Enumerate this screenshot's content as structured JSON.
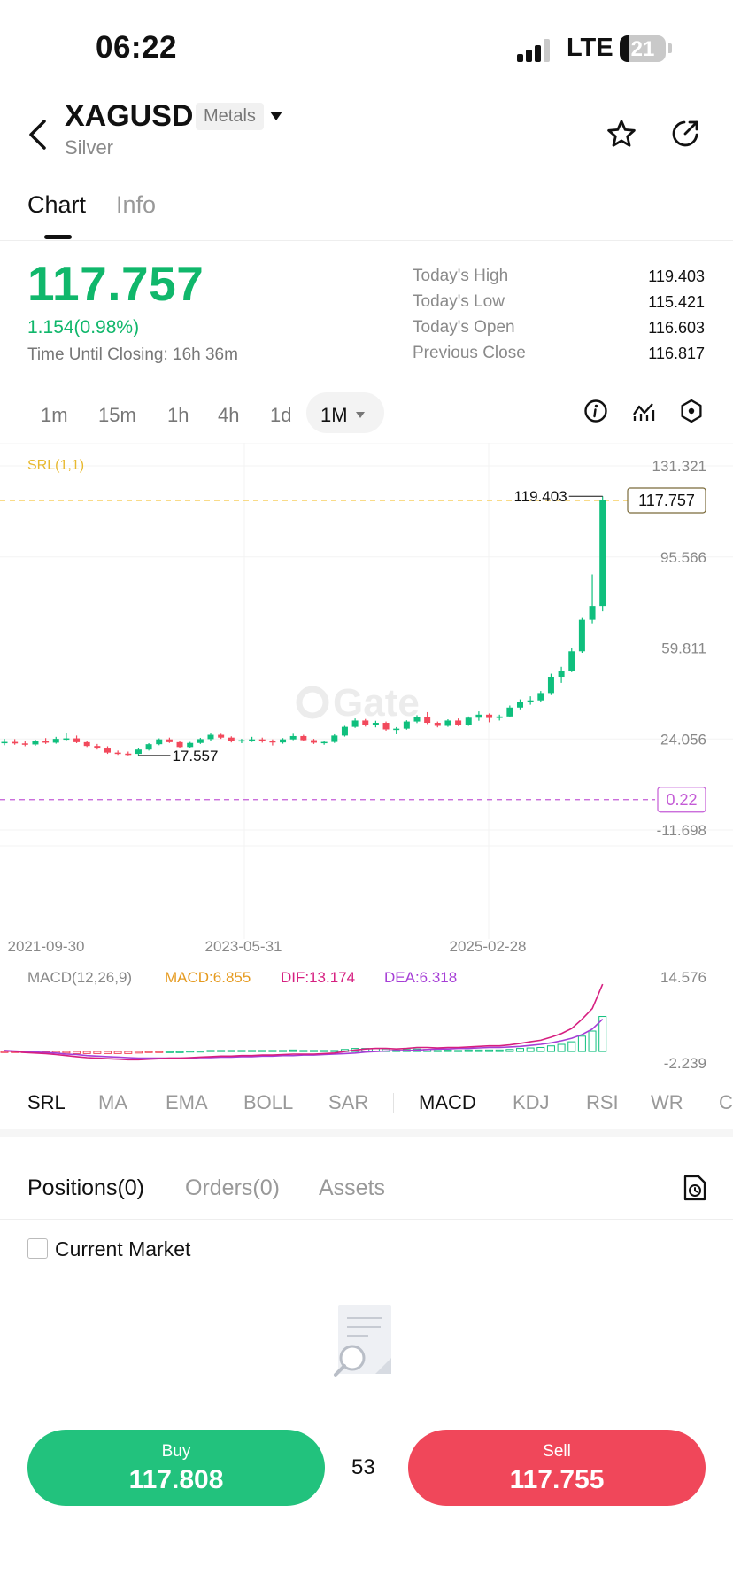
{
  "status_bar": {
    "time": "06:22",
    "network": "LTE",
    "battery": "21",
    "battery_fraction": 0.21
  },
  "header": {
    "symbol": "XAGUSD",
    "category_badge": "Metals",
    "name": "Silver"
  },
  "tabs": [
    {
      "label": "Chart",
      "active": true
    },
    {
      "label": "Info",
      "active": false
    }
  ],
  "quote": {
    "last_price": "117.757",
    "change": "1.154(0.98%)",
    "time_until_closing": "Time Until Closing: 16h 36m",
    "stats": [
      {
        "label": "Today's High",
        "value": "119.403"
      },
      {
        "label": "Today's Low",
        "value": "115.421"
      },
      {
        "label": "Today's Open",
        "value": "116.603"
      },
      {
        "label": "Previous Close",
        "value": "116.817"
      }
    ]
  },
  "timeframes": [
    "1m",
    "15m",
    "1h",
    "4h",
    "1d"
  ],
  "active_timeframe": "1M",
  "chart_data": {
    "type": "candlestick",
    "interval": "1M",
    "indicator_label": "SRL(1,1)",
    "watermark": "Gate",
    "y_ticks": [
      "131.321",
      "95.566",
      "59.811",
      "24.056",
      "-11.698"
    ],
    "ylim": [
      -11.698,
      131.321
    ],
    "x_ticks": [
      "2021-09-30",
      "2023-05-31",
      "2025-02-28"
    ],
    "current_price_label": "117.757",
    "high_marker": "119.403",
    "low_marker": "17.557",
    "indicator_line_label": "0.22",
    "up_color": "#0fbf7d",
    "down_color": "#f2495c",
    "candles": [
      {
        "o": 22.5,
        "h": 24.1,
        "l": 21.6,
        "c": 22.9
      },
      {
        "o": 22.9,
        "h": 24.0,
        "l": 21.8,
        "c": 22.3
      },
      {
        "o": 22.3,
        "h": 23.4,
        "l": 21.2,
        "c": 21.9
      },
      {
        "o": 21.9,
        "h": 23.8,
        "l": 21.4,
        "c": 23.2
      },
      {
        "o": 23.2,
        "h": 24.4,
        "l": 22.1,
        "c": 22.6
      },
      {
        "o": 22.6,
        "h": 24.9,
        "l": 22.2,
        "c": 24.1
      },
      {
        "o": 24.1,
        "h": 26.5,
        "l": 23.5,
        "c": 24.3
      },
      {
        "o": 24.3,
        "h": 25.4,
        "l": 22.4,
        "c": 22.8
      },
      {
        "o": 22.8,
        "h": 23.4,
        "l": 20.9,
        "c": 21.3
      },
      {
        "o": 21.3,
        "h": 22.1,
        "l": 19.9,
        "c": 20.3
      },
      {
        "o": 20.3,
        "h": 21.2,
        "l": 18.2,
        "c": 18.7
      },
      {
        "o": 18.7,
        "h": 19.5,
        "l": 17.8,
        "c": 18.3
      },
      {
        "o": 18.3,
        "h": 19.1,
        "l": 17.6,
        "c": 18.2
      },
      {
        "o": 18.2,
        "h": 20.4,
        "l": 17.557,
        "c": 19.9
      },
      {
        "o": 19.9,
        "h": 22.4,
        "l": 19.5,
        "c": 22.0
      },
      {
        "o": 22.0,
        "h": 24.3,
        "l": 21.6,
        "c": 23.9
      },
      {
        "o": 23.9,
        "h": 24.6,
        "l": 22.5,
        "c": 22.8
      },
      {
        "o": 22.8,
        "h": 23.4,
        "l": 20.3,
        "c": 20.9
      },
      {
        "o": 20.9,
        "h": 22.9,
        "l": 20.5,
        "c": 22.5
      },
      {
        "o": 22.5,
        "h": 24.5,
        "l": 22.1,
        "c": 24.0
      },
      {
        "o": 24.0,
        "h": 26.2,
        "l": 23.4,
        "c": 25.7
      },
      {
        "o": 25.7,
        "h": 26.1,
        "l": 24.1,
        "c": 24.6
      },
      {
        "o": 24.6,
        "h": 25.1,
        "l": 22.7,
        "c": 23.1
      },
      {
        "o": 23.1,
        "h": 24.1,
        "l": 22.4,
        "c": 23.6
      },
      {
        "o": 23.6,
        "h": 24.9,
        "l": 22.9,
        "c": 23.9
      },
      {
        "o": 23.9,
        "h": 24.6,
        "l": 22.6,
        "c": 23.2
      },
      {
        "o": 23.2,
        "h": 23.9,
        "l": 21.5,
        "c": 22.7
      },
      {
        "o": 22.7,
        "h": 24.4,
        "l": 22.2,
        "c": 23.9
      },
      {
        "o": 23.9,
        "h": 26.1,
        "l": 23.6,
        "c": 25.2
      },
      {
        "o": 25.2,
        "h": 25.7,
        "l": 23.2,
        "c": 23.6
      },
      {
        "o": 23.6,
        "h": 24.1,
        "l": 22.1,
        "c": 22.6
      },
      {
        "o": 22.6,
        "h": 23.2,
        "l": 21.8,
        "c": 22.9
      },
      {
        "o": 22.9,
        "h": 25.9,
        "l": 22.5,
        "c": 25.4
      },
      {
        "o": 25.4,
        "h": 29.2,
        "l": 25.0,
        "c": 28.8
      },
      {
        "o": 28.8,
        "h": 32.1,
        "l": 28.4,
        "c": 31.3
      },
      {
        "o": 31.3,
        "h": 31.9,
        "l": 28.9,
        "c": 29.5
      },
      {
        "o": 29.5,
        "h": 31.2,
        "l": 28.6,
        "c": 30.4
      },
      {
        "o": 30.4,
        "h": 30.9,
        "l": 27.3,
        "c": 27.8
      },
      {
        "o": 27.8,
        "h": 28.7,
        "l": 25.9,
        "c": 28.1
      },
      {
        "o": 28.1,
        "h": 31.4,
        "l": 27.7,
        "c": 30.9
      },
      {
        "o": 30.9,
        "h": 33.4,
        "l": 30.3,
        "c": 32.5
      },
      {
        "o": 32.5,
        "h": 34.6,
        "l": 29.9,
        "c": 30.4
      },
      {
        "o": 30.4,
        "h": 30.9,
        "l": 28.6,
        "c": 29.2
      },
      {
        "o": 29.2,
        "h": 31.8,
        "l": 28.8,
        "c": 31.3
      },
      {
        "o": 31.3,
        "h": 32.1,
        "l": 29.1,
        "c": 29.6
      },
      {
        "o": 29.6,
        "h": 32.9,
        "l": 29.2,
        "c": 32.4
      },
      {
        "o": 32.4,
        "h": 34.9,
        "l": 31.2,
        "c": 33.6
      },
      {
        "o": 33.6,
        "h": 34.1,
        "l": 30.6,
        "c": 32.3
      },
      {
        "o": 32.3,
        "h": 33.6,
        "l": 31.3,
        "c": 32.9
      },
      {
        "o": 32.9,
        "h": 37.2,
        "l": 32.5,
        "c": 36.4
      },
      {
        "o": 36.4,
        "h": 39.6,
        "l": 35.7,
        "c": 38.6
      },
      {
        "o": 38.6,
        "h": 40.8,
        "l": 37.5,
        "c": 39.2
      },
      {
        "o": 39.2,
        "h": 42.9,
        "l": 38.4,
        "c": 42.1
      },
      {
        "o": 42.1,
        "h": 49.7,
        "l": 41.3,
        "c": 48.5
      },
      {
        "o": 48.5,
        "h": 52.4,
        "l": 46.1,
        "c": 50.8
      },
      {
        "o": 50.8,
        "h": 59.9,
        "l": 50.3,
        "c": 58.5
      },
      {
        "o": 58.5,
        "h": 71.6,
        "l": 57.9,
        "c": 70.9
      },
      {
        "o": 70.9,
        "h": 88.7,
        "l": 69.5,
        "c": 76.3
      },
      {
        "o": 76.3,
        "h": 119.403,
        "l": 74.2,
        "c": 117.757
      }
    ],
    "macd": {
      "label": "MACD(12,26,9)",
      "macd_value": "MACD:6.855",
      "dif_value": "DIF:13.174",
      "dea_value": "DEA:6.318",
      "y_ticks": [
        "14.576",
        "-2.239"
      ],
      "ylim": [
        -2.239,
        14.576
      ],
      "dif_color": "#d61f80",
      "dea_color": "#a63ed6",
      "dif": [
        0.1,
        0.0,
        -0.2,
        -0.3,
        -0.4,
        -0.6,
        -0.8,
        -1.0,
        -1.2,
        -1.3,
        -1.4,
        -1.5,
        -1.6,
        -1.6,
        -1.5,
        -1.4,
        -1.3,
        -1.3,
        -1.2,
        -1.1,
        -1.0,
        -0.9,
        -0.9,
        -0.8,
        -0.8,
        -0.7,
        -0.7,
        -0.6,
        -0.5,
        -0.5,
        -0.5,
        -0.4,
        -0.3,
        0.0,
        0.3,
        0.5,
        0.6,
        0.6,
        0.5,
        0.6,
        0.8,
        0.8,
        0.7,
        0.8,
        0.8,
        0.9,
        1.0,
        1.1,
        1.1,
        1.3,
        1.6,
        1.9,
        2.2,
        2.8,
        3.5,
        4.5,
        6.3,
        8.4,
        13.174
      ],
      "dea": [
        0.2,
        0.1,
        0.0,
        -0.1,
        -0.2,
        -0.3,
        -0.5,
        -0.6,
        -0.8,
        -0.9,
        -1.0,
        -1.1,
        -1.2,
        -1.3,
        -1.3,
        -1.3,
        -1.3,
        -1.3,
        -1.3,
        -1.2,
        -1.2,
        -1.1,
        -1.1,
        -1.0,
        -1.0,
        -0.9,
        -0.9,
        -0.8,
        -0.8,
        -0.7,
        -0.7,
        -0.6,
        -0.5,
        -0.4,
        -0.3,
        -0.1,
        0.0,
        0.1,
        0.2,
        0.2,
        0.3,
        0.4,
        0.5,
        0.5,
        0.6,
        0.6,
        0.7,
        0.8,
        0.8,
        0.9,
        1.0,
        1.2,
        1.4,
        1.7,
        2.1,
        2.6,
        3.3,
        4.4,
        6.318
      ],
      "hist": [
        -0.1,
        -0.1,
        -0.2,
        -0.2,
        -0.2,
        -0.3,
        -0.3,
        -0.4,
        -0.4,
        -0.4,
        -0.4,
        -0.4,
        -0.4,
        -0.3,
        -0.2,
        -0.1,
        0.0,
        0.0,
        0.1,
        0.1,
        0.2,
        0.2,
        0.2,
        0.2,
        0.2,
        0.2,
        0.2,
        0.2,
        0.3,
        0.2,
        0.2,
        0.2,
        0.2,
        0.4,
        0.6,
        0.6,
        0.6,
        0.5,
        0.3,
        0.4,
        0.5,
        0.4,
        0.2,
        0.3,
        0.2,
        0.3,
        0.3,
        0.3,
        0.3,
        0.4,
        0.6,
        0.7,
        0.8,
        1.1,
        1.4,
        1.9,
        3.0,
        4.0,
        6.855
      ]
    }
  },
  "indicator_tabs": [
    {
      "label": "SRL",
      "active": true
    },
    {
      "label": "MA",
      "active": false
    },
    {
      "label": "EMA",
      "active": false
    },
    {
      "label": "BOLL",
      "active": false
    },
    {
      "label": "SAR",
      "active": false
    },
    {
      "label": "MACD",
      "active": true
    },
    {
      "label": "KDJ",
      "active": false
    },
    {
      "label": "RSI",
      "active": false
    },
    {
      "label": "WR",
      "active": false
    },
    {
      "label": "C",
      "active": false
    }
  ],
  "positions_tabs": [
    {
      "label": "Positions(0)",
      "active": true
    },
    {
      "label": "Orders(0)",
      "active": false
    },
    {
      "label": "Assets",
      "active": false
    }
  ],
  "current_market_label": "Current Market",
  "icons": {
    "back": "chevron-left-icon",
    "favorite": "star-icon",
    "share": "share-icon",
    "history": "history-document-icon",
    "empty": "empty-search-icon"
  },
  "trade": {
    "buy_label": "Buy",
    "buy_price": "117.808",
    "spread": "53",
    "sell_label": "Sell",
    "sell_price": "117.755"
  },
  "colors": {
    "up": "#10b76b",
    "down": "#f0475a",
    "srl_line": "#f5c542",
    "indicator_line": "#c45bd6"
  }
}
